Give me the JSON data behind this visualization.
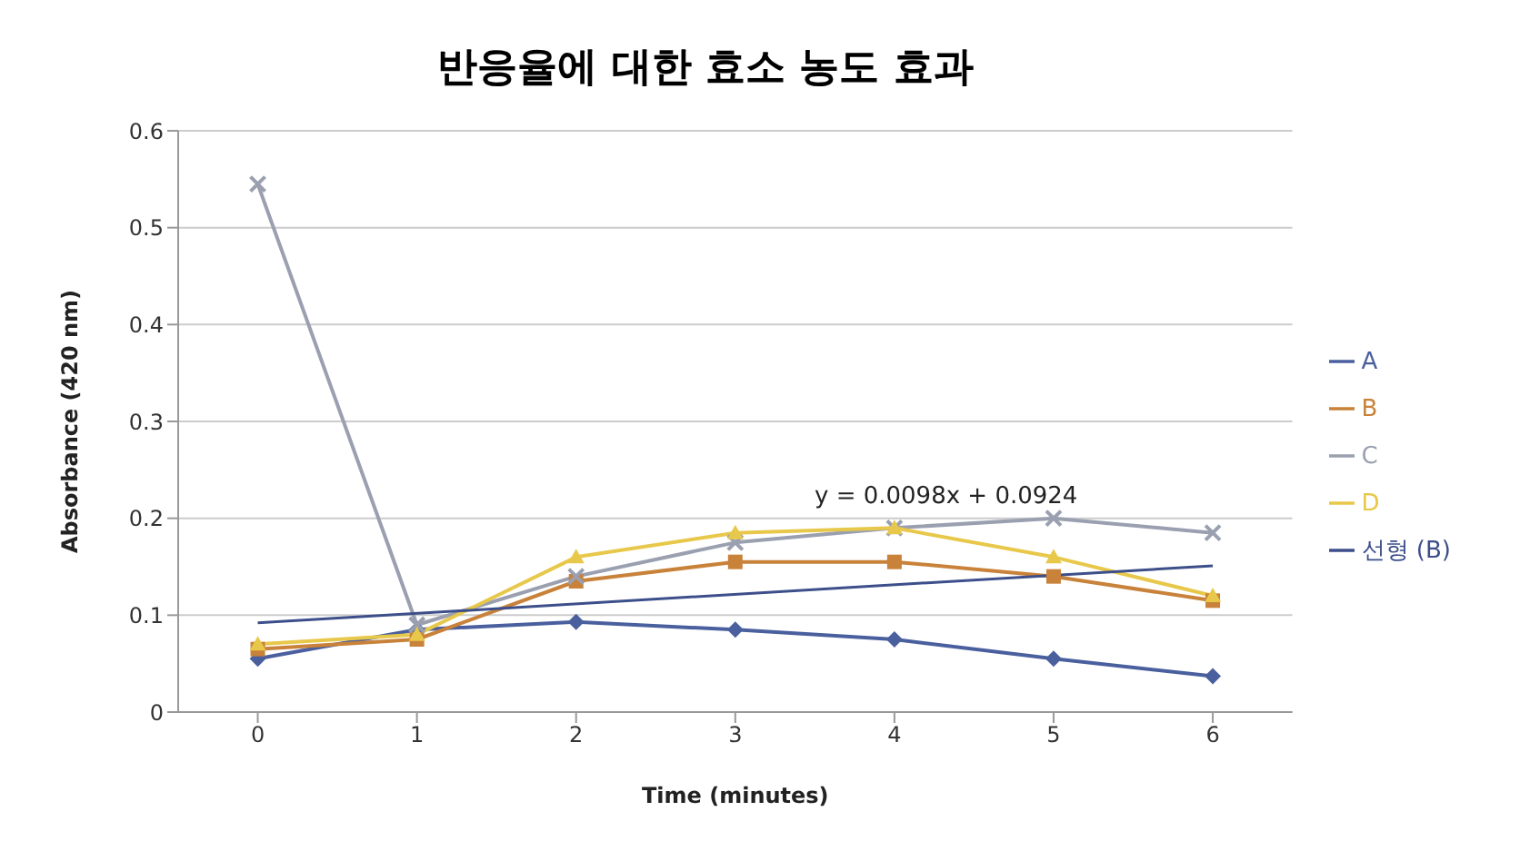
{
  "chart_data": {
    "type": "line",
    "title": "반응율에 대한 효소 농도 효과",
    "xlabel": "Time (minutes)",
    "ylabel": "Absorbance (420 nm)",
    "x": [
      0,
      1,
      2,
      3,
      4,
      5,
      6
    ],
    "xlim": [
      -0.5,
      6.5
    ],
    "xticks": [
      0,
      1,
      2,
      3,
      4,
      5,
      6
    ],
    "ylim": [
      0,
      0.6
    ],
    "yticks": [
      0,
      0.1,
      0.2,
      0.3,
      0.4,
      0.5,
      0.6
    ],
    "grid": "y",
    "legend": "right",
    "series": [
      {
        "name": "A",
        "color": "#4a5f9e",
        "marker": "diamond",
        "values": [
          0.055,
          0.085,
          0.093,
          0.085,
          0.075,
          0.055,
          0.037
        ]
      },
      {
        "name": "B",
        "color": "#c8823a",
        "marker": "square",
        "values": [
          0.065,
          0.075,
          0.135,
          0.155,
          0.155,
          0.14,
          0.115
        ]
      },
      {
        "name": "C",
        "color": "#9aa0b0",
        "marker": "cross",
        "values": [
          0.545,
          0.09,
          0.14,
          0.175,
          0.19,
          0.2,
          0.185
        ]
      },
      {
        "name": "D",
        "color": "#e8c84a",
        "marker": "triangle",
        "values": [
          0.07,
          0.08,
          0.16,
          0.185,
          0.19,
          0.16,
          0.12
        ]
      },
      {
        "name": "선형 (B)",
        "color": "#3d4f8a",
        "marker": "none",
        "x": [
          0,
          6
        ],
        "values": [
          0.092,
          0.151
        ]
      }
    ],
    "annotations": [
      "y = 0.0098x + 0.0924"
    ]
  }
}
